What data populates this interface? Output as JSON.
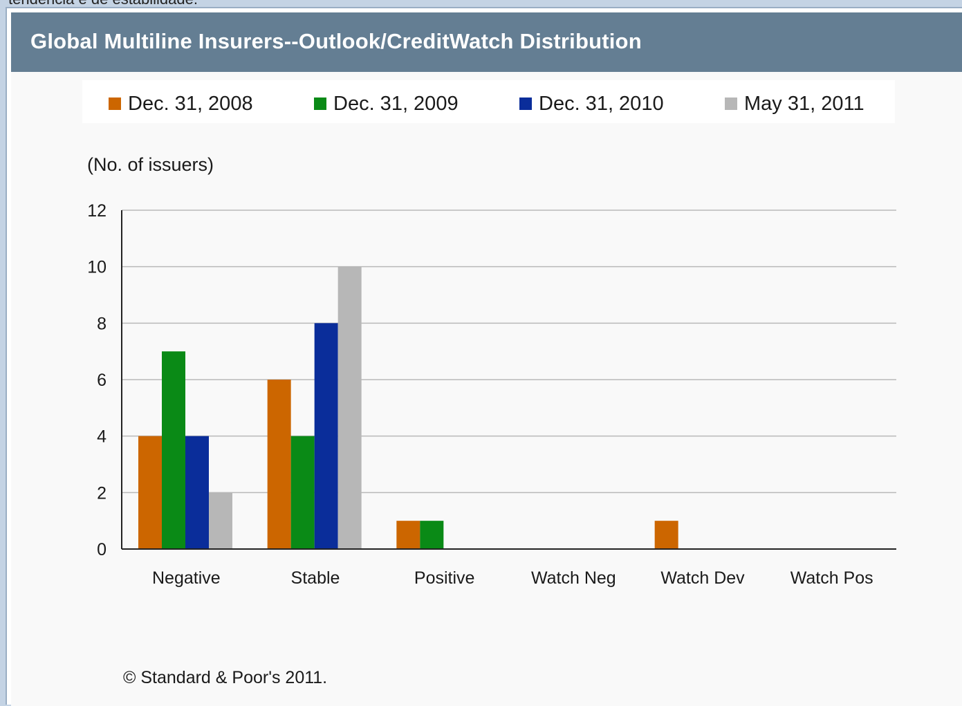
{
  "header": {
    "title": "Global Multiline Insurers--Outlook/CreditWatch Distribution"
  },
  "top_strip_text": "tendência e de estabilidade.",
  "footer": {
    "copyright": "© Standard & Poor's 2011."
  },
  "chart_data": {
    "type": "bar",
    "title": "Global Multiline Insurers--Outlook/CreditWatch Distribution",
    "ylabel": "(No. of issuers)",
    "xlabel": "",
    "categories": [
      "Negative",
      "Stable",
      "Positive",
      "Watch Neg",
      "Watch Dev",
      "Watch Pos"
    ],
    "series": [
      {
        "name": "Dec. 31, 2008",
        "color": "#cc6600",
        "values": [
          4,
          6,
          1,
          0,
          1,
          0
        ]
      },
      {
        "name": "Dec. 31, 2009",
        "color": "#0a8a16",
        "values": [
          7,
          4,
          1,
          0,
          0,
          0
        ]
      },
      {
        "name": "Dec. 31, 2010",
        "color": "#0a2d9a",
        "values": [
          4,
          8,
          0,
          0,
          0,
          0
        ]
      },
      {
        "name": "May 31, 2011",
        "color": "#b7b7b7",
        "values": [
          2,
          10,
          0,
          0,
          0,
          0
        ]
      }
    ],
    "ylim": [
      0,
      12
    ],
    "yticks": [
      "0",
      "2",
      "4",
      "6",
      "8",
      "10",
      "12"
    ],
    "grid": true,
    "legend_position": "top"
  }
}
